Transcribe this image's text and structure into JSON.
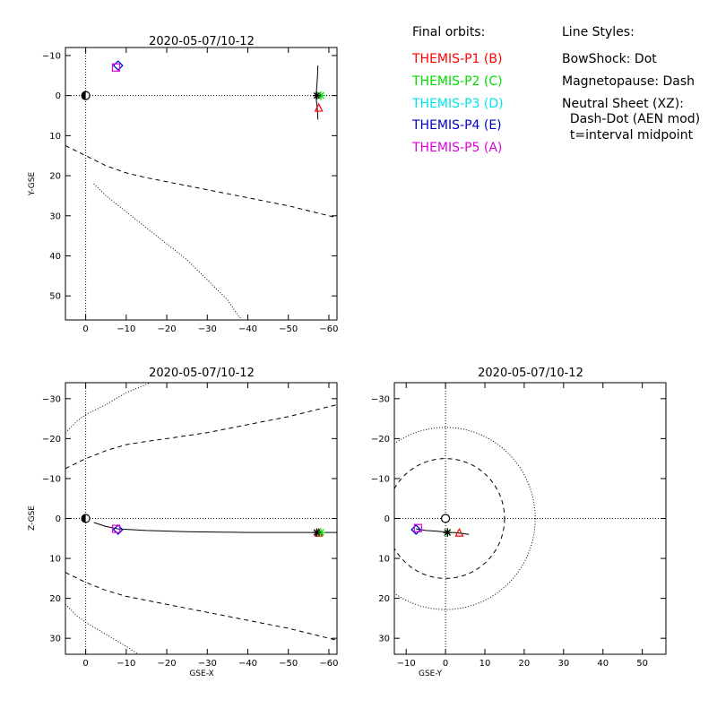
{
  "legend": {
    "orbits_header": "Final orbits:",
    "orbits": [
      {
        "label": "THEMIS-P1 (B)",
        "color": "#ff0000"
      },
      {
        "label": "THEMIS-P2 (C)",
        "color": "#00dd00"
      },
      {
        "label": "THEMIS-P3 (D)",
        "color": "#00e5e5"
      },
      {
        "label": "THEMIS-P4 (E)",
        "color": "#0000cc"
      },
      {
        "label": "THEMIS-P5 (A)",
        "color": "#dd00dd"
      }
    ],
    "styles_header": "Line Styles:",
    "styles": [
      "BowShock: Dot",
      "Magnetopause: Dash",
      "Neutral Sheet (XZ):",
      "  Dash-Dot (AEN mod)",
      "  t=interval midpoint"
    ]
  },
  "chart_data": [
    {
      "id": "xy",
      "type": "line",
      "title": "2020-05-07/10-12",
      "xlabel": "",
      "ylabel": "Y-GSE",
      "xlim": [
        5,
        -62
      ],
      "ylim": [
        -12,
        56
      ],
      "xticks": [
        0,
        -10,
        -20,
        -30,
        -40,
        -50,
        -60
      ],
      "yticks": [
        -10,
        0,
        10,
        20,
        30,
        40,
        50
      ],
      "reference_lines": {
        "x": 0,
        "y": 0
      },
      "bow_shock": [
        [
          -2,
          22
        ],
        [
          -5,
          25
        ],
        [
          -10,
          29
        ],
        [
          -15,
          33
        ],
        [
          -20,
          37
        ],
        [
          -25,
          41
        ],
        [
          -30,
          46
        ],
        [
          -35,
          51
        ],
        [
          -37,
          54
        ],
        [
          -38.5,
          56
        ]
      ],
      "magnetopause": [
        [
          5,
          12.5
        ],
        [
          0,
          15
        ],
        [
          -5,
          17.5
        ],
        [
          -10,
          19.3
        ],
        [
          -15,
          20.5
        ],
        [
          -20,
          21.5
        ],
        [
          -30,
          23.5
        ],
        [
          -40,
          25.5
        ],
        [
          -50,
          27.5
        ],
        [
          -62,
          30.5
        ]
      ],
      "orbit_track": [
        [
          -57.3,
          -7.5
        ],
        [
          -57.2,
          -5
        ],
        [
          -57.0,
          -2
        ],
        [
          -56.8,
          0
        ],
        [
          -57.0,
          2
        ],
        [
          -57.2,
          4
        ],
        [
          -57.3,
          6
        ]
      ],
      "markers": [
        {
          "probe": "P1",
          "symbol": "triangle",
          "color": "#ff0000",
          "x": -57.5,
          "y": 3
        },
        {
          "probe": "P2",
          "symbol": "star",
          "color": "#00dd00",
          "x": -58,
          "y": 0
        },
        {
          "probe": "P3",
          "symbol": "diamond",
          "color": "#00e5e5",
          "x": -8,
          "y": -7.5
        },
        {
          "probe": "P4",
          "symbol": "diamond",
          "color": "#0000cc",
          "x": -8,
          "y": -7.5
        },
        {
          "probe": "P5",
          "symbol": "square",
          "color": "#dd00dd",
          "x": -7.5,
          "y": -7
        },
        {
          "probe": "midpoint",
          "symbol": "asterisk",
          "color": "#000000",
          "x": -57,
          "y": 0
        }
      ]
    },
    {
      "id": "xz",
      "type": "line",
      "title": "2020-05-07/10-12",
      "xlabel": "GSE-X",
      "ylabel": "Z-GSE",
      "xlim": [
        5,
        -62
      ],
      "ylim": [
        -34,
        34
      ],
      "xticks": [
        0,
        -10,
        -20,
        -30,
        -40,
        -50,
        -60
      ],
      "yticks": [
        -30,
        -20,
        -10,
        0,
        10,
        20,
        30
      ],
      "reference_lines": {
        "x": 0,
        "y": 0
      },
      "bow_shock_upper": [
        [
          5,
          21.5
        ],
        [
          2,
          24.5
        ],
        [
          0,
          26
        ],
        [
          -5,
          29
        ],
        [
          -10,
          32
        ],
        [
          -13,
          34
        ]
      ],
      "bow_shock_lower": [
        [
          5,
          -21.5
        ],
        [
          2,
          -24.5
        ],
        [
          0,
          -26
        ],
        [
          -5,
          -28.5
        ],
        [
          -10,
          -31.5
        ],
        [
          -16,
          -34
        ]
      ],
      "magnetopause_upper": [
        [
          5,
          13.5
        ],
        [
          0,
          16
        ],
        [
          -5,
          18
        ],
        [
          -10,
          19.5
        ],
        [
          -15,
          20.5
        ],
        [
          -20,
          21.5
        ],
        [
          -30,
          23.5
        ],
        [
          -40,
          25.5
        ],
        [
          -50,
          27.5
        ],
        [
          -62,
          30.5
        ]
      ],
      "magnetopause_lower": [
        [
          5,
          -12.5
        ],
        [
          0,
          -15
        ],
        [
          -5,
          -17
        ],
        [
          -10,
          -18.5
        ],
        [
          -15,
          -19.3
        ],
        [
          -20,
          -20
        ],
        [
          -30,
          -21.5
        ],
        [
          -40,
          -23.5
        ],
        [
          -50,
          -25.5
        ],
        [
          -62,
          -28.5
        ]
      ],
      "neutral_sheet": [
        [
          -2,
          1
        ],
        [
          -5,
          2
        ],
        [
          -8,
          2.6
        ],
        [
          -15,
          3
        ],
        [
          -25,
          3.3
        ],
        [
          -40,
          3.5
        ],
        [
          -55,
          3.5
        ],
        [
          -62,
          3.5
        ]
      ],
      "markers": [
        {
          "probe": "P1",
          "symbol": "triangle",
          "color": "#ff0000",
          "x": -57.5,
          "y": 3.5
        },
        {
          "probe": "P2",
          "symbol": "star",
          "color": "#00dd00",
          "x": -58,
          "y": 3.5
        },
        {
          "probe": "P3",
          "symbol": "diamond",
          "color": "#00e5e5",
          "x": -8,
          "y": 2.8
        },
        {
          "probe": "P4",
          "symbol": "diamond",
          "color": "#0000cc",
          "x": -8,
          "y": 2.8
        },
        {
          "probe": "P5",
          "symbol": "square",
          "color": "#dd00dd",
          "x": -7.5,
          "y": 2.6
        },
        {
          "probe": "midpoint",
          "symbol": "asterisk",
          "color": "#000000",
          "x": -57,
          "y": 3.5
        }
      ]
    },
    {
      "id": "yz",
      "type": "line",
      "title": "2020-05-07/10-12",
      "xlabel": "GSE-Y",
      "ylabel": "",
      "xlim": [
        -13,
        56
      ],
      "ylim": [
        -34,
        34
      ],
      "xticks": [
        -10,
        0,
        10,
        20,
        30,
        40,
        50
      ],
      "yticks": [
        -30,
        -20,
        -10,
        0,
        10,
        20,
        30
      ],
      "reference_lines": {
        "x": 0,
        "y": 0
      },
      "bow_shock_radius": 22.8,
      "magnetopause_radius": 15,
      "orbit_track": [
        [
          -7.5,
          2.6
        ],
        [
          -5,
          3
        ],
        [
          -2,
          3.2
        ],
        [
          0,
          3.4
        ],
        [
          3,
          3.6
        ],
        [
          6,
          4
        ]
      ],
      "markers": [
        {
          "probe": "P1",
          "symbol": "triangle",
          "color": "#ff0000",
          "x": 3.5,
          "y": 3.5
        },
        {
          "probe": "P2",
          "symbol": "star",
          "color": "#00dd00",
          "x": 0.5,
          "y": 3.5
        },
        {
          "probe": "P3",
          "symbol": "diamond",
          "color": "#00e5e5",
          "x": -7.5,
          "y": 2.8
        },
        {
          "probe": "P4",
          "symbol": "diamond",
          "color": "#0000cc",
          "x": -7.5,
          "y": 2.8
        },
        {
          "probe": "P5",
          "symbol": "square",
          "color": "#dd00dd",
          "x": -7,
          "y": 2.4
        },
        {
          "probe": "midpoint",
          "symbol": "asterisk",
          "color": "#000000",
          "x": 0.5,
          "y": 3.5
        }
      ]
    }
  ]
}
